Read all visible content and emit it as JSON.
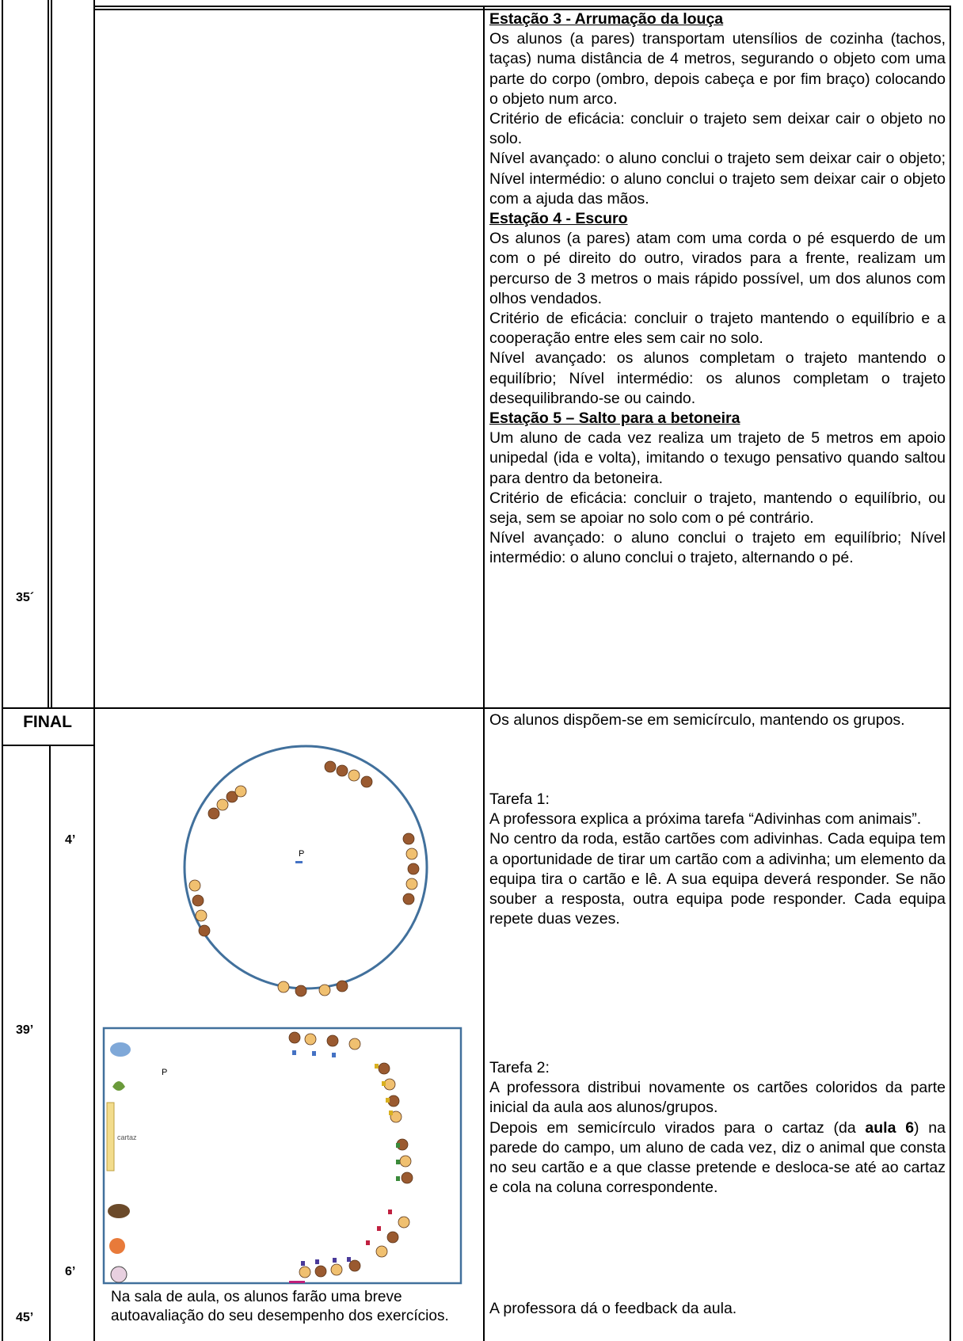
{
  "table": {
    "row_1": {
      "time": "35´",
      "blocks": [
        {
          "heading": "Estação 3 - Arrumação da louça"
        },
        {
          "text": "Os alunos (a pares) transportam utensílios de cozinha (tachos, taças) numa distância de 4 metros, segurando o objeto com uma parte do corpo (ombro, depois cabeça e por fim braço) colocando o objeto num arco."
        },
        {
          "text": "Critério de eficácia: concluir o trajeto sem deixar cair o objeto no solo."
        },
        {
          "text": "Nível avançado: o aluno conclui o trajeto sem deixar cair o objeto; Nível intermédio: o aluno conclui o trajeto sem deixar cair o objeto com a ajuda das mãos."
        },
        {
          "heading": "Estação 4 - Escuro"
        },
        {
          "text": "Os alunos (a pares) atam com uma corda o pé esquerdo de um com o pé direito do outro, virados para a frente, realizam um percurso de 3 metros o mais rápido possível, um dos alunos com olhos vendados."
        },
        {
          "text": "Critério de eficácia: concluir o trajeto mantendo o equilíbrio e a cooperação entre eles sem cair no solo."
        },
        {
          "text": "Nível avançado: os alunos completam o trajeto mantendo o equilíbrio; Nível intermédio: os alunos completam o trajeto desequilibrando-se ou caindo."
        },
        {
          "heading": "Estação 5 – Salto para a betoneira"
        },
        {
          "text": "Um aluno de cada vez realiza um trajeto de 5 metros em apoio unipedal (ida e volta), imitando o texugo pensativo quando saltou para dentro da betoneira."
        },
        {
          "text": "Critério de eficácia: concluir o trajeto, mantendo o equilíbrio, ou seja, sem se apoiar no solo com o pé contrário."
        },
        {
          "text": "Nível avançado: o aluno conclui o trajeto em equilíbrio; Nível intermédio: o aluno conclui o trajeto, alternando o pé."
        }
      ]
    },
    "section": "FINAL",
    "row_2": {
      "times": [
        "39’",
        "45’"
      ],
      "durations": [
        "4’",
        "6’"
      ],
      "circle_diagram": {
        "teacher": "P"
      },
      "court_diagram": {
        "teacher": "P",
        "poster": "cartaz"
      },
      "caption": "Na sala de aula, os alunos farão uma breve autoavaliação do seu desempenho dos exercícios.",
      "intro": "Os alunos dispõem-se em semicírculo, mantendo os grupos.",
      "task_1": {
        "title": "Tarefa 1:",
        "paragraphs": [
          "A professora explica a próxima tarefa “Adivinhas com animais”.",
          "No centro da roda, estão cartões com adivinhas. Cada equipa tem a oportunidade de tirar um cartão com a adivinha; um elemento da equipa tira o cartão e lê. A sua equipa deverá responder. Se não souber a resposta, outra equipa pode responder. Cada equipa repete duas vezes."
        ]
      },
      "task_2": {
        "title": "Tarefa 2:",
        "paragraphs": [
          "A professora distribui novamente os cartões coloridos da parte inicial da aula aos alunos/grupos.",
          [
            {
              "text": "Depois em semicírculo virados para o cartaz (da "
            },
            {
              "text": "aula 6",
              "bold": true
            },
            {
              "text": ") na parede do campo, um aluno de cada vez, diz o animal que consta no seu cartão e a que classe pretende e desloca-se até ao cartaz e cola na coluna correspondente."
            }
          ]
        ]
      },
      "closing": "A professora dá o feedback da aula."
    }
  }
}
